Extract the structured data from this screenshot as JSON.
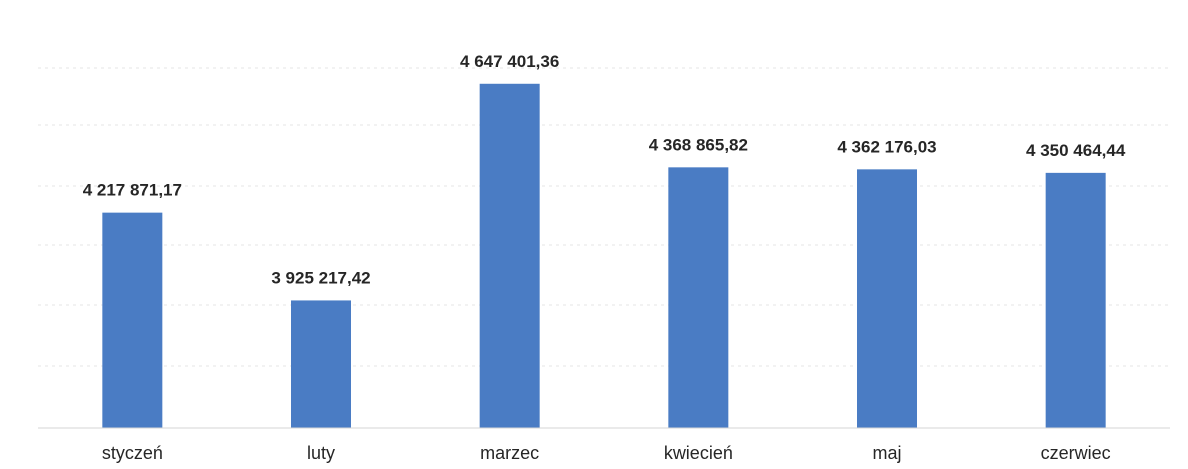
{
  "chart_data": {
    "type": "bar",
    "categories": [
      "styczeń",
      "luty",
      "marzec",
      "kwiecień",
      "maj",
      "czerwiec"
    ],
    "values": [
      4217871.17,
      3925217.42,
      4647401.36,
      4368865.82,
      4362176.03,
      4350464.44
    ],
    "value_labels": [
      "4 217 871,17",
      "3 925 217,42",
      "4 647 401,36",
      "4 368 865,82",
      "4 362 176,03",
      "4 350 464,44"
    ],
    "title": "",
    "xlabel": "",
    "ylabel": "",
    "ylim": [
      3500000,
      4750000
    ],
    "grid": true,
    "bar_color": "#4a7cc4",
    "legend": "none"
  }
}
